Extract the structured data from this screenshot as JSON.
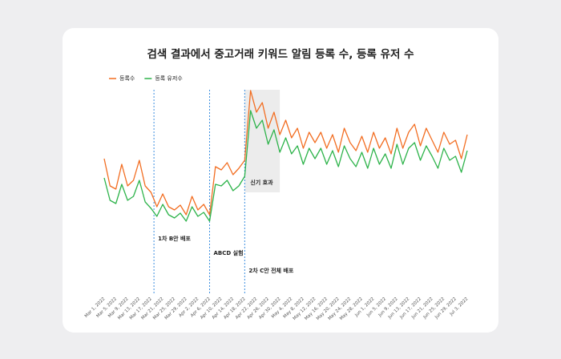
{
  "chart_data": {
    "type": "line",
    "title": "검색 결과에서 중고거래 키워드 알림 등록 수, 등록 유저 수",
    "categories": [
      "Mar 1, 2022",
      null,
      "Mar 5, 2022",
      null,
      "Mar 9, 2022",
      null,
      "Mar 13, 2022",
      null,
      "Mar 17, 2022",
      null,
      "Mar 21, 2022",
      null,
      "Mar 25, 2022",
      null,
      "Mar 29, 2022",
      null,
      "Apr 2, 2022",
      null,
      "Apr 6, 2022",
      null,
      "Apr 10, 2022",
      null,
      "Apr 14, 2022",
      null,
      "Apr 18, 2022",
      null,
      "Apr 22, 2022",
      null,
      "Apr 26, 2022",
      null,
      "Apr 30, 2022",
      null,
      "May 4, 2022",
      null,
      "May 8, 2022",
      null,
      "May 12, 2022",
      null,
      "May 16, 2022",
      null,
      "May 20, 2022",
      null,
      "May 24, 2022",
      null,
      "May 28, 2022",
      null,
      "Jun 1, 2022",
      null,
      "Jun 5, 2022",
      null,
      "Jun 9, 2022",
      null,
      "Jun 13, 2022",
      null,
      "Jun 17, 2022",
      null,
      "Jun 21, 2022",
      null,
      "Jun 25, 2022",
      null,
      "Jun 29, 2022",
      null,
      "Jul 3, 2022"
    ],
    "series": [
      {
        "name": "등록수",
        "color": "#f26d21",
        "values": [
          102,
          68,
          64,
          95,
          68,
          75,
          100,
          68,
          60,
          42,
          58,
          42,
          38,
          44,
          32,
          55,
          38,
          45,
          32,
          92,
          88,
          97,
          82,
          90,
          100,
          187,
          160,
          172,
          140,
          160,
          132,
          150,
          128,
          140,
          115,
          135,
          122,
          135,
          115,
          132,
          110,
          140,
          122,
          112,
          130,
          110,
          135,
          115,
          128,
          108,
          140,
          115,
          135,
          145,
          118,
          140,
          125,
          110,
          135,
          120,
          125,
          102,
          132
        ]
      },
      {
        "name": "등록 유저수",
        "color": "#2db34a",
        "values": [
          78,
          50,
          46,
          70,
          50,
          55,
          75,
          48,
          40,
          30,
          45,
          32,
          28,
          34,
          24,
          42,
          30,
          35,
          24,
          70,
          68,
          75,
          62,
          68,
          80,
          162,
          140,
          150,
          120,
          138,
          110,
          128,
          108,
          118,
          95,
          115,
          102,
          115,
          95,
          112,
          92,
          118,
          102,
          92,
          110,
          90,
          115,
          95,
          108,
          90,
          120,
          95,
          115,
          122,
          100,
          118,
          105,
          90,
          115,
          100,
          105,
          85,
          112
        ]
      }
    ],
    "ylim": [
      0,
      200
    ],
    "annotations": [
      {
        "text": "1차 B안 배포",
        "index": 8.5
      },
      {
        "text": "ABCD 실험",
        "index": 18
      },
      {
        "text": "2차 C안 전체 배포",
        "index": 24
      }
    ],
    "shaded": {
      "text": "신기 효과",
      "from": 24,
      "to": 30
    }
  }
}
